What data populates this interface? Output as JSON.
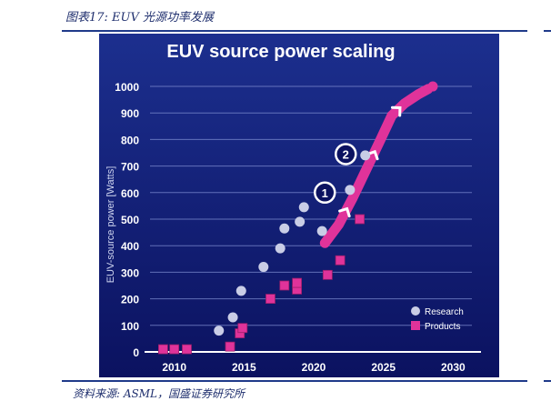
{
  "figure": {
    "caption": "图表17: EUV 光源功率发展",
    "source": "资料来源: ASML，国盛证券研究所"
  },
  "colors": {
    "research": "#c9cde6",
    "products": "#e0339a",
    "trend": "#e0339a",
    "bg_top": "#1c2f8e",
    "bg_bottom": "#0b1260"
  },
  "chart_data": {
    "type": "scatter",
    "title": "EUV source power scaling",
    "xlabel": "",
    "ylabel": "EUV-source power [Watts]",
    "xlim": [
      2008,
      2032
    ],
    "ylim": [
      0,
      1000
    ],
    "xticks": [
      "2010",
      "2015",
      "2020",
      "2025",
      "2030"
    ],
    "yticks": [
      "0",
      "100",
      "200",
      "300",
      "400",
      "500",
      "600",
      "700",
      "800",
      "900",
      "1000"
    ],
    "grid": "horizontal",
    "legend": "bottom-right",
    "series": [
      {
        "name": "Research",
        "marker": "circle",
        "points": [
          [
            2013.2,
            80
          ],
          [
            2014.2,
            130
          ],
          [
            2014.8,
            230
          ],
          [
            2016.4,
            320
          ],
          [
            2017.6,
            390
          ],
          [
            2017.9,
            465
          ],
          [
            2019.0,
            490
          ],
          [
            2019.3,
            545
          ],
          [
            2020.6,
            455
          ],
          [
            2022.6,
            610
          ],
          [
            2023.7,
            740
          ]
        ]
      },
      {
        "name": "Products",
        "marker": "square",
        "points": [
          [
            2009.2,
            10
          ],
          [
            2010.0,
            10
          ],
          [
            2010.9,
            10
          ],
          [
            2014.0,
            20
          ],
          [
            2014.7,
            70
          ],
          [
            2014.9,
            90
          ],
          [
            2016.9,
            200
          ],
          [
            2017.9,
            250
          ],
          [
            2018.8,
            235
          ],
          [
            2018.8,
            260
          ],
          [
            2021.0,
            290
          ],
          [
            2021.9,
            345
          ],
          [
            2023.3,
            500
          ]
        ]
      }
    ],
    "trend": {
      "points": [
        [
          2020.8,
          410
        ],
        [
          2021.8,
          480
        ],
        [
          2022.8,
          580
        ],
        [
          2023.8,
          690
        ],
        [
          2024.8,
          800
        ],
        [
          2025.6,
          890
        ],
        [
          2026.5,
          935
        ],
        [
          2027.5,
          970
        ],
        [
          2028.2,
          990
        ]
      ],
      "milestones": [
        "1",
        "2"
      ]
    }
  }
}
